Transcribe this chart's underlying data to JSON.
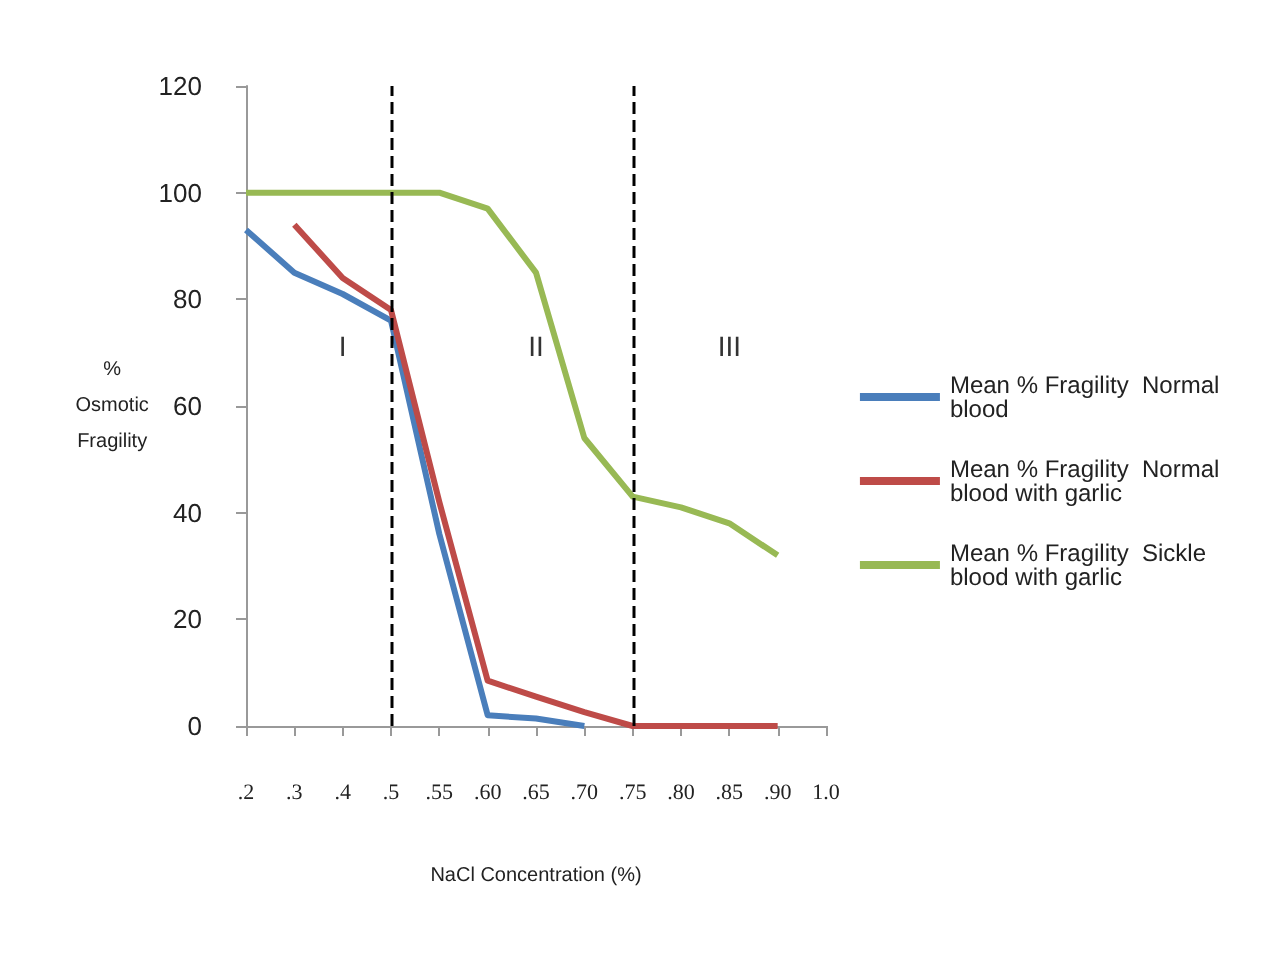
{
  "chart_data": {
    "type": "line",
    "xlabel": "NaCl Concentration (%)",
    "ylabel": "%\nOsmotic\nFragility",
    "categories": [
      ".2",
      ".3",
      ".4",
      ".5",
      ".55",
      ".60",
      ".65",
      ".70",
      ".75",
      ".80",
      ".85",
      ".90",
      "1.0"
    ],
    "series": [
      {
        "name": "Mean % Fragility  Normal blood",
        "color": "#4a7ebb",
        "values": [
          93,
          85,
          81,
          76,
          36,
          2,
          1.4,
          0,
          null,
          null,
          null,
          null,
          null
        ]
      },
      {
        "name": "Mean % Fragility  Normal blood with garlic",
        "color": "#be4b48",
        "values": [
          null,
          94,
          84,
          78,
          42,
          8.5,
          5.5,
          2.6,
          0,
          0,
          0,
          0,
          null
        ]
      },
      {
        "name": "Mean % Fragility  Sickle blood with garlic",
        "color": "#98b954",
        "values": [
          100,
          100,
          100,
          100,
          100,
          97,
          85,
          54,
          43,
          41,
          38,
          32,
          null
        ]
      }
    ],
    "ylim": [
      0,
      120
    ],
    "yticks": [
      0,
      20,
      40,
      60,
      80,
      100,
      120
    ],
    "grid": false,
    "legend": "right",
    "marker": "none",
    "line_style": "solid",
    "ref_lines": [
      {
        "axis": "x",
        "value": ".5",
        "color": "#000000",
        "line_style": "dashed"
      },
      {
        "axis": "x",
        "value": ".75",
        "color": "#000000",
        "line_style": "dashed"
      }
    ],
    "annotations": [
      "I",
      "II",
      "III"
    ]
  }
}
